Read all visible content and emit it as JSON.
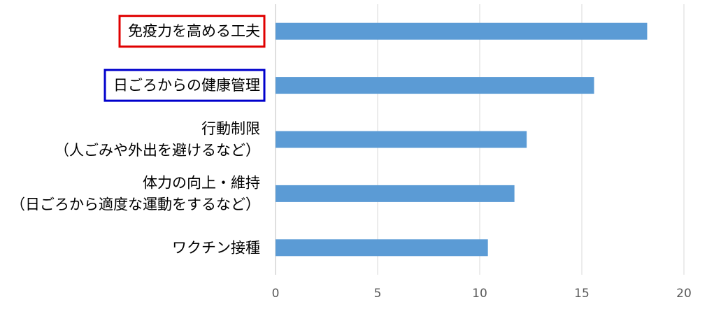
{
  "chart_data": {
    "type": "bar",
    "orientation": "horizontal",
    "categories": [
      [
        "免疫力を高める工夫"
      ],
      [
        "日ごろからの健康管理"
      ],
      [
        "行動制限",
        "（人ごみや外出を避けるなど）"
      ],
      [
        "体力の向上・維持",
        "（日ごろから適度な運動をするなど）"
      ],
      [
        "ワクチン接種"
      ]
    ],
    "values": [
      18.2,
      15.6,
      12.3,
      11.7,
      10.4
    ],
    "xlim": [
      0,
      20
    ],
    "xticks": [
      "0",
      "5",
      "10",
      "15",
      "20"
    ],
    "grid": true,
    "bar_color": "#5b9bd5",
    "highlights": [
      {
        "category_index": 0,
        "color": "#e00000"
      },
      {
        "category_index": 1,
        "color": "#0000cc"
      }
    ]
  }
}
